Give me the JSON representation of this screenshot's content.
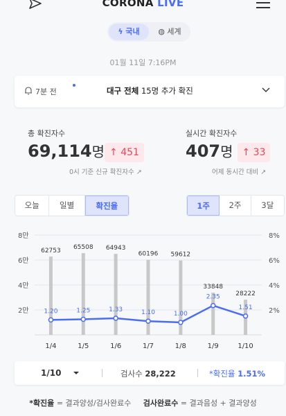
{
  "header": {
    "logo_corona": "CORONA",
    "logo_live": "LIVE"
  },
  "region_toggle": {
    "domestic_label": "국내",
    "global_label": "세계",
    "selected": "국내"
  },
  "datetime": "01월 11일 7:16PM",
  "notice": {
    "time_ago": "7분 전",
    "region": "대구 전체",
    "message": "15명 추가 확진"
  },
  "stats": {
    "total": {
      "label": "총 확진자수",
      "value": "69,114",
      "unit": "명",
      "delta": "451",
      "note": "0시 기준 신규 확진자수"
    },
    "realtime": {
      "label": "실시간 확진자수",
      "value": "407",
      "unit": "명",
      "delta": "33",
      "note": "어제 동시간 대비"
    }
  },
  "view_tabs": [
    "오늘",
    "일별",
    "확진율"
  ],
  "view_tabs_active": 2,
  "range_tabs": [
    "1주",
    "2주",
    "3달"
  ],
  "range_tabs_active": 0,
  "chart_data": {
    "type": "bar",
    "categories": [
      "1/4",
      "1/5",
      "1/6",
      "1/7",
      "1/8",
      "1/9",
      "1/10"
    ],
    "series": [
      {
        "values": [
          62753,
          65508,
          64943,
          60196,
          59612,
          33848,
          28222
        ],
        "axis": "left"
      },
      {
        "values": [
          1.2,
          1.25,
          1.33,
          1.1,
          1.0,
          2.35,
          1.51
        ],
        "axis": "right",
        "render": "line"
      }
    ],
    "left_ticks": [
      "2만",
      "4만",
      "6만",
      "8만"
    ],
    "right_ticks": [
      "2%",
      "4%",
      "6%",
      "8%"
    ],
    "ylim_left": [
      0,
      80000
    ],
    "ylim_right": [
      0,
      8
    ],
    "bar_labels": [
      "62753",
      "65508",
      "64943",
      "60196",
      "59612",
      "33848",
      "28222"
    ],
    "line_labels": [
      "1.20",
      "1.25",
      "1.33",
      "1.10",
      "1.00",
      "2.35",
      "1.51"
    ],
    "colors": {
      "bar": "#c8c8c8",
      "line": "#4a6cf7"
    },
    "grid": true
  },
  "summary": {
    "date": "1/10",
    "tests_label": "검사수",
    "tests_value": "28,222",
    "rate_label": "*확진율",
    "rate_value": "1.51%"
  },
  "footnote": {
    "rate_term": "*확진율",
    "rate_def": "= 결과양성/검사완료수",
    "done_term": "검사완료수",
    "done_def": "= 결과음성 + 결과양성"
  },
  "colors": {
    "accent": "#4a6cf7",
    "increase": "#e8465b"
  }
}
